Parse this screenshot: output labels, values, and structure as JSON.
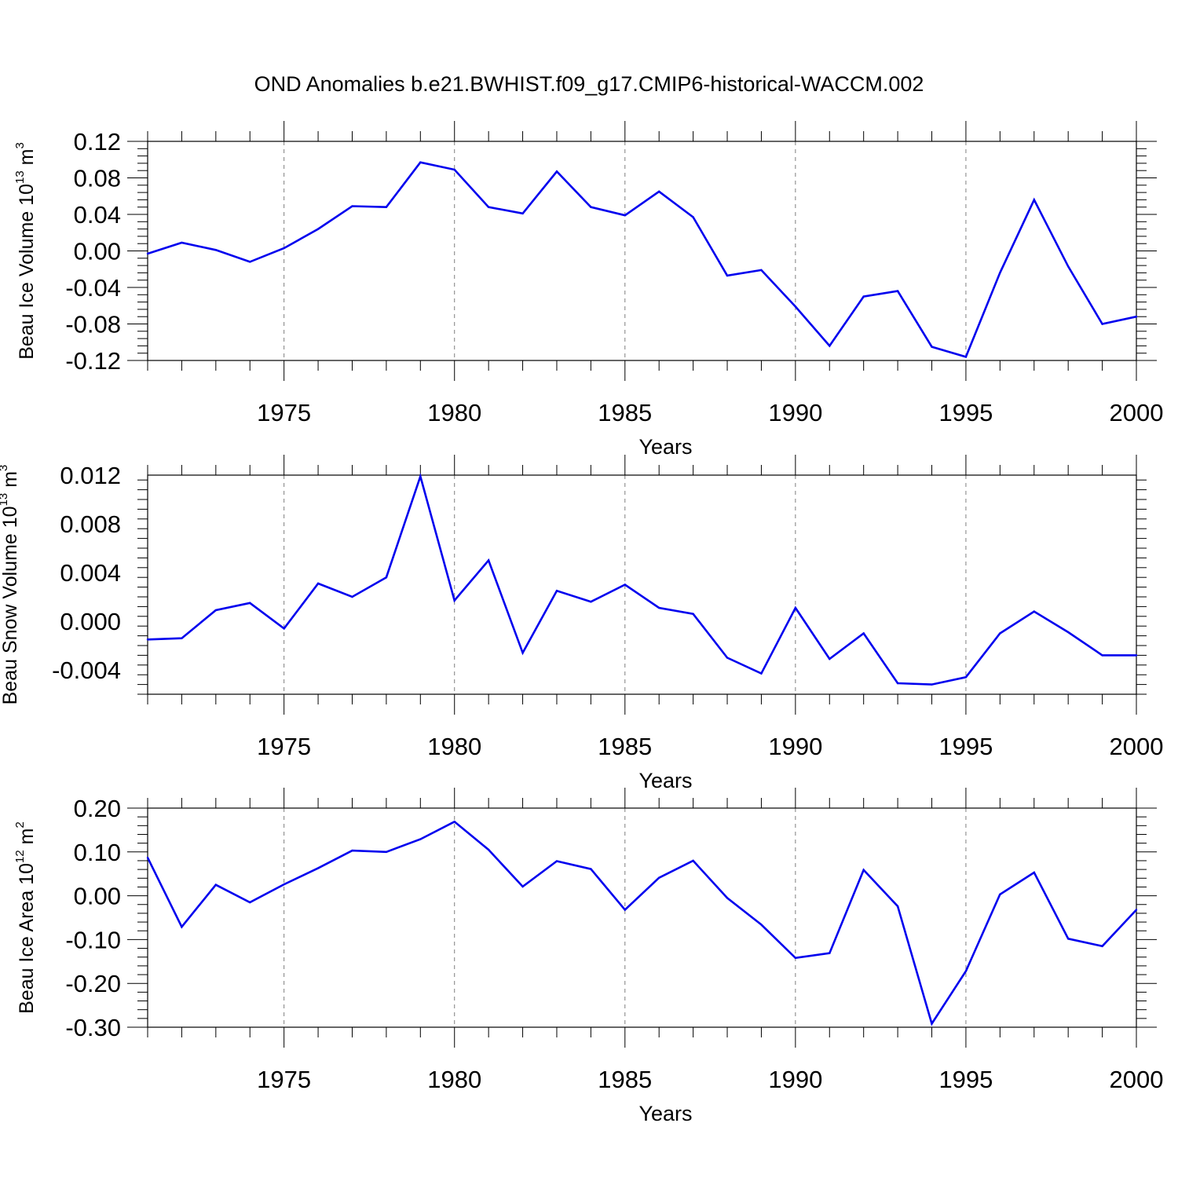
{
  "title": "OND Anomalies b.e21.BWHIST.f09_g17.CMIP6-historical-WACCM.002",
  "colors": {
    "series": "#0000ee",
    "axis": "#000000",
    "grid": "#7f7f7f"
  },
  "chart_data": [
    {
      "type": "line",
      "xlabel": "Years",
      "ylabel": {
        "prefix": "Beau Ice Volume 10",
        "exponent": "13",
        "unit": " m",
        "unit_exponent": "3"
      },
      "xlim": [
        1971,
        2000
      ],
      "ylim": [
        -0.12,
        0.12
      ],
      "x_ticks": [
        1975,
        1980,
        1985,
        1990,
        1995,
        2000
      ],
      "x_tick_labels": [
        "1975",
        "1980",
        "1985",
        "1990",
        "1995",
        "2000"
      ],
      "y_ticks": [
        0.12,
        0.08,
        0.04,
        0.0,
        -0.04,
        -0.08,
        -0.12
      ],
      "y_tick_labels": [
        "0.12",
        "0.08",
        "0.04",
        "0.00",
        "-0.04",
        "-0.08",
        "-0.12"
      ],
      "grid": "vertical dashed at major x ticks",
      "x": [
        1971,
        1972,
        1973,
        1974,
        1975,
        1976,
        1977,
        1978,
        1979,
        1980,
        1981,
        1982,
        1983,
        1984,
        1985,
        1986,
        1987,
        1988,
        1989,
        1990,
        1991,
        1992,
        1993,
        1994,
        1995,
        1996,
        1997,
        1998,
        1999,
        2000
      ],
      "values": [
        -0.003,
        0.009,
        0.001,
        -0.012,
        0.003,
        0.024,
        0.049,
        0.048,
        0.097,
        0.089,
        0.048,
        0.041,
        0.087,
        0.048,
        0.039,
        0.065,
        0.037,
        -0.027,
        -0.021,
        -0.061,
        -0.104,
        -0.05,
        -0.044,
        -0.105,
        -0.116,
        -0.024,
        0.056,
        -0.017,
        -0.08,
        -0.072
      ]
    },
    {
      "type": "line",
      "xlabel": "Years",
      "ylabel": {
        "prefix": "Beau Snow Volume 10",
        "exponent": "13",
        "unit": " m",
        "unit_exponent": "3"
      },
      "xlim": [
        1971,
        2000
      ],
      "ylim": [
        -0.006,
        0.012
      ],
      "x_ticks": [
        1975,
        1980,
        1985,
        1990,
        1995,
        2000
      ],
      "x_tick_labels": [
        "1975",
        "1980",
        "1985",
        "1990",
        "1995",
        "2000"
      ],
      "y_ticks": [
        0.012,
        0.008,
        0.004,
        0.0,
        -0.004
      ],
      "y_tick_labels": [
        "0.012",
        "0.008",
        "0.004",
        "0.000",
        "-0.004"
      ],
      "grid": "vertical dashed at major x ticks",
      "x": [
        1971,
        1972,
        1973,
        1974,
        1975,
        1976,
        1977,
        1978,
        1979,
        1980,
        1981,
        1982,
        1983,
        1984,
        1985,
        1986,
        1987,
        1988,
        1989,
        1990,
        1991,
        1992,
        1993,
        1994,
        1995,
        1996,
        1997,
        1998,
        1999,
        2000
      ],
      "values": [
        -0.0015,
        -0.0014,
        0.0009,
        0.0015,
        -0.0006,
        0.0031,
        0.002,
        0.0036,
        0.0119,
        0.0017,
        0.005,
        -0.0026,
        0.0025,
        0.0016,
        0.003,
        0.0011,
        0.0006,
        -0.003,
        -0.0043,
        0.0011,
        -0.0031,
        -0.001,
        -0.0051,
        -0.0052,
        -0.0046,
        -0.001,
        0.0008,
        -0.0009,
        -0.0028,
        -0.0028
      ]
    },
    {
      "type": "line",
      "xlabel": "Years",
      "ylabel": {
        "prefix": "Beau Ice Area 10",
        "exponent": "12",
        "unit": " m",
        "unit_exponent": "2"
      },
      "xlim": [
        1971,
        2000
      ],
      "ylim": [
        -0.3,
        0.2
      ],
      "x_ticks": [
        1975,
        1980,
        1985,
        1990,
        1995,
        2000
      ],
      "x_tick_labels": [
        "1975",
        "1980",
        "1985",
        "1990",
        "1995",
        "2000"
      ],
      "y_ticks": [
        0.2,
        0.1,
        0.0,
        -0.1,
        -0.2,
        -0.3
      ],
      "y_tick_labels": [
        "0.20",
        "0.10",
        "0.00",
        "-0.10",
        "-0.20",
        "-0.30"
      ],
      "grid": "vertical dashed at major x ticks",
      "x": [
        1971,
        1972,
        1973,
        1974,
        1975,
        1976,
        1977,
        1978,
        1979,
        1980,
        1981,
        1982,
        1983,
        1984,
        1985,
        1986,
        1987,
        1988,
        1989,
        1990,
        1991,
        1992,
        1993,
        1994,
        1995,
        1996,
        1997,
        1998,
        1999,
        2000
      ],
      "values": [
        0.087,
        -0.071,
        0.025,
        -0.015,
        0.026,
        0.063,
        0.103,
        0.1,
        0.129,
        0.169,
        0.105,
        0.021,
        0.079,
        0.061,
        -0.032,
        0.041,
        0.08,
        -0.005,
        -0.066,
        -0.142,
        -0.131,
        0.059,
        -0.024,
        -0.292,
        -0.172,
        0.003,
        0.053,
        -0.098,
        -0.115,
        -0.032
      ]
    }
  ]
}
